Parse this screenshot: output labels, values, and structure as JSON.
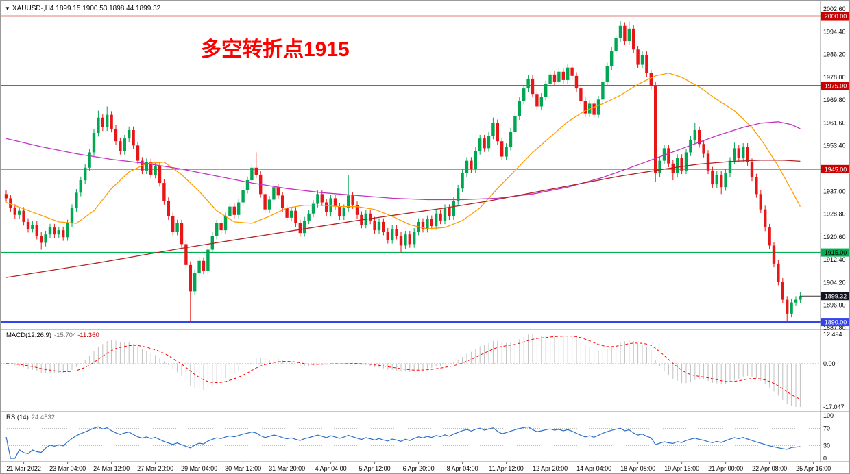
{
  "header": {
    "collapse_arrow": "▼",
    "text": "XAUUSD-,H4 1899.15 1900.53 1898.44 1899.32"
  },
  "annotation": {
    "text": "多空转折点1915",
    "color": "#ff0000"
  },
  "chart_data": {
    "type": "candlestick",
    "symbol": "XAUUSD-",
    "timeframe": "H4",
    "grid": "off",
    "legend": "none",
    "current_ohlc": {
      "open": "1899.15",
      "high": "1900.53",
      "low": "1898.44",
      "close": "1899.32"
    },
    "price_axis": {
      "min": 1887.8,
      "max": 2002.6,
      "tick_step": 8.2,
      "ticks": [
        "2002.60",
        "1994.40",
        "1986.20",
        "1978.00",
        "1969.80",
        "1961.60",
        "1953.40",
        "1945.20",
        "1937.00",
        "1928.80",
        "1920.60",
        "1912.40",
        "1904.20",
        "1896.00",
        "1887.80"
      ]
    },
    "levels": [
      {
        "price": 2000.0,
        "label": "2000.00",
        "color": "#cc0000",
        "badge_text": "#ffffff",
        "width": 1.5
      },
      {
        "price": 1975.0,
        "label": "1975.00",
        "color": "#cc0000",
        "badge_text": "#ffffff",
        "width": 1.5
      },
      {
        "price": 1945.0,
        "label": "1945.00",
        "color": "#cc0000",
        "badge_text": "#ffffff",
        "width": 1.5
      },
      {
        "price": 1915.0,
        "label": "1915.00",
        "color": "#00b050",
        "badge_text": "#000000",
        "width": 1.5
      },
      {
        "price": 1890.0,
        "label": "1890.00",
        "color": "#3344ee",
        "badge_text": "#ffffff",
        "width": 3
      }
    ],
    "last_price": {
      "value": 1899.32,
      "label": "1899.32",
      "badge_color": "#141420"
    },
    "time_labels": [
      "21 Mar 2022",
      "23 Mar 04:00",
      "24 Mar 12:00",
      "27 Mar 20:00",
      "29 Mar 04:00",
      "30 Mar 12:00",
      "31 Mar 20:00",
      "4 Apr 04:00",
      "5 Apr 12:00",
      "6 Apr 20:00",
      "8 Apr 04:00",
      "11 Apr 12:00",
      "12 Apr 20:00",
      "14 Apr 04:00",
      "18 Apr 08:00",
      "19 Apr 16:00",
      "21 Apr 00:00",
      "22 Apr 08:00",
      "25 Apr 16:00"
    ],
    "candles": {
      "up_color": "#00a651",
      "down_color": "#e81717",
      "first_open": 1936.0,
      "default_wick": 1.3,
      "closes": [
        1934.5,
        1931,
        1928.5,
        1930,
        1926,
        1923.5,
        1925,
        1921,
        1918.5,
        1921.5,
        1924,
        1921.5,
        1923,
        1920.5,
        1925.5,
        1931,
        1936.5,
        1941,
        1945.5,
        1951,
        1958,
        1963.5,
        1960,
        1964.5,
        1959.5,
        1955,
        1951.5,
        1956,
        1959,
        1953.5,
        1948,
        1944.5,
        1947.5,
        1943,
        1946,
        1940,
        1933.5,
        1928,
        1922.5,
        1925.5,
        1918,
        1910.5,
        1901,
        1907.5,
        1912,
        1908.5,
        1916,
        1921,
        1925.5,
        1923,
        1928,
        1931.5,
        1928.5,
        1933,
        1937.5,
        1941,
        1945.5,
        1943,
        1936,
        1930.5,
        1934,
        1938.5,
        1935.5,
        1931,
        1927.5,
        1930,
        1925.5,
        1922,
        1926.5,
        1929,
        1932.5,
        1936,
        1933,
        1929.5,
        1934.5,
        1931.5,
        1928,
        1931,
        1935.5,
        1932,
        1928.5,
        1925,
        1929,
        1926.5,
        1923,
        1926,
        1922.5,
        1919.5,
        1923.5,
        1921,
        1917.5,
        1921.5,
        1918,
        1922.5,
        1926,
        1923.5,
        1927,
        1924.5,
        1929,
        1926.5,
        1931,
        1928,
        1933.5,
        1938,
        1943.5,
        1948,
        1945,
        1951.5,
        1956,
        1952.5,
        1957,
        1961.5,
        1955,
        1949.5,
        1953,
        1958.5,
        1964,
        1969.5,
        1974,
        1977.5,
        1972,
        1967.5,
        1971,
        1975.5,
        1979,
        1976.5,
        1980,
        1977,
        1981.5,
        1978.5,
        1974,
        1969.5,
        1965,
        1968.5,
        1964.5,
        1970,
        1976.5,
        1982,
        1987.5,
        1992,
        1996.5,
        1991,
        1995.5,
        1988,
        1982.5,
        1986,
        1979.5,
        1975,
        1943.5,
        1948,
        1952.5,
        1947,
        1943.5,
        1949,
        1944.5,
        1951,
        1955.5,
        1959,
        1954,
        1950.5,
        1944.5,
        1939.5,
        1943,
        1938.5,
        1943.5,
        1948,
        1952.5,
        1949,
        1953,
        1947.5,
        1942,
        1936,
        1930.5,
        1924,
        1917.5,
        1911,
        1904.5,
        1898,
        1893,
        1897,
        1898,
        1899.32
      ],
      "wick_high_overrides": {
        "21": 2.5,
        "23": 3.0,
        "57": 5.5,
        "78": 7.5,
        "111": 2.0,
        "140": 1.9,
        "142": 2.6,
        "157": 2.5,
        "166": 2.0
      },
      "wick_low_overrides": {
        "8": 2.5,
        "42": 10.5,
        "90": 2.5,
        "148": 3.0,
        "152": 2.5,
        "163": 2.5,
        "178": 2.8
      }
    },
    "moving_averages": [
      {
        "name": "ma-fast-orange",
        "color": "#ff9d00",
        "anchors": [
          [
            0,
            1933
          ],
          [
            6,
            1929.5
          ],
          [
            12,
            1926
          ],
          [
            16,
            1925.5
          ],
          [
            20,
            1930
          ],
          [
            24,
            1938
          ],
          [
            28,
            1944
          ],
          [
            32,
            1947
          ],
          [
            36,
            1947.5
          ],
          [
            40,
            1943
          ],
          [
            44,
            1937
          ],
          [
            48,
            1930
          ],
          [
            52,
            1926
          ],
          [
            56,
            1925.5
          ],
          [
            60,
            1928
          ],
          [
            64,
            1931
          ],
          [
            68,
            1932
          ],
          [
            72,
            1932
          ],
          [
            76,
            1931.5
          ],
          [
            80,
            1931.5
          ],
          [
            84,
            1930.5
          ],
          [
            88,
            1928
          ],
          [
            92,
            1925
          ],
          [
            96,
            1923.5
          ],
          [
            100,
            1924
          ],
          [
            104,
            1926.5
          ],
          [
            108,
            1931
          ],
          [
            112,
            1938
          ],
          [
            116,
            1944.5
          ],
          [
            120,
            1951
          ],
          [
            124,
            1956.5
          ],
          [
            128,
            1962
          ],
          [
            132,
            1966
          ],
          [
            136,
            1968.5
          ],
          [
            140,
            1971.5
          ],
          [
            144,
            1975.5
          ],
          [
            148,
            1978.5
          ],
          [
            151,
            1979.5
          ],
          [
            154,
            1978
          ],
          [
            158,
            1974.5
          ],
          [
            162,
            1970
          ],
          [
            166,
            1966
          ],
          [
            170,
            1960
          ],
          [
            173,
            1953.5
          ],
          [
            176,
            1946
          ],
          [
            179,
            1937.5
          ],
          [
            181,
            1931.5
          ]
        ]
      },
      {
        "name": "ma-mid-magenta",
        "color": "#c333c3",
        "anchors": [
          [
            0,
            1956
          ],
          [
            8,
            1953
          ],
          [
            16,
            1950.5
          ],
          [
            24,
            1948.5
          ],
          [
            32,
            1947
          ],
          [
            40,
            1945
          ],
          [
            48,
            1942.5
          ],
          [
            56,
            1940
          ],
          [
            64,
            1938
          ],
          [
            72,
            1936.5
          ],
          [
            80,
            1935.5
          ],
          [
            88,
            1934.5
          ],
          [
            96,
            1934
          ],
          [
            104,
            1934
          ],
          [
            112,
            1934.5
          ],
          [
            120,
            1936
          ],
          [
            128,
            1938.5
          ],
          [
            136,
            1942
          ],
          [
            144,
            1946.5
          ],
          [
            150,
            1950
          ],
          [
            156,
            1953.5
          ],
          [
            162,
            1957
          ],
          [
            168,
            1960
          ],
          [
            172,
            1961.5
          ],
          [
            176,
            1962
          ],
          [
            179,
            1961
          ],
          [
            181,
            1959.5
          ]
        ]
      },
      {
        "name": "ma-slow-darkred",
        "color": "#b22222",
        "anchors": [
          [
            0,
            1906
          ],
          [
            20,
            1911
          ],
          [
            40,
            1916.5
          ],
          [
            60,
            1921.5
          ],
          [
            80,
            1926.5
          ],
          [
            100,
            1931
          ],
          [
            110,
            1933.5
          ],
          [
            120,
            1936.5
          ],
          [
            130,
            1939.5
          ],
          [
            140,
            1942.5
          ],
          [
            150,
            1945
          ],
          [
            158,
            1946.8
          ],
          [
            166,
            1947.8
          ],
          [
            172,
            1948.2
          ],
          [
            177,
            1948.2
          ],
          [
            181,
            1947.8
          ]
        ]
      }
    ],
    "macd": {
      "name": "MACD(12,26,9)",
      "value_main": "-15.704",
      "value_signal": "-11.360",
      "params": {
        "fast": 12,
        "slow": 26,
        "signal": 9
      },
      "axis_labels": [
        "12.494",
        "0.00",
        "-17.047"
      ],
      "histogram_color": "#c0c0c0",
      "signal_color": "#ff0000"
    },
    "rsi": {
      "name": "RSI(14)",
      "value": "24.4532",
      "period": 14,
      "levels": [
        70,
        30
      ],
      "axis_labels": [
        "100",
        "70",
        "30",
        "0"
      ],
      "line_color": "#2a6fc9"
    }
  }
}
